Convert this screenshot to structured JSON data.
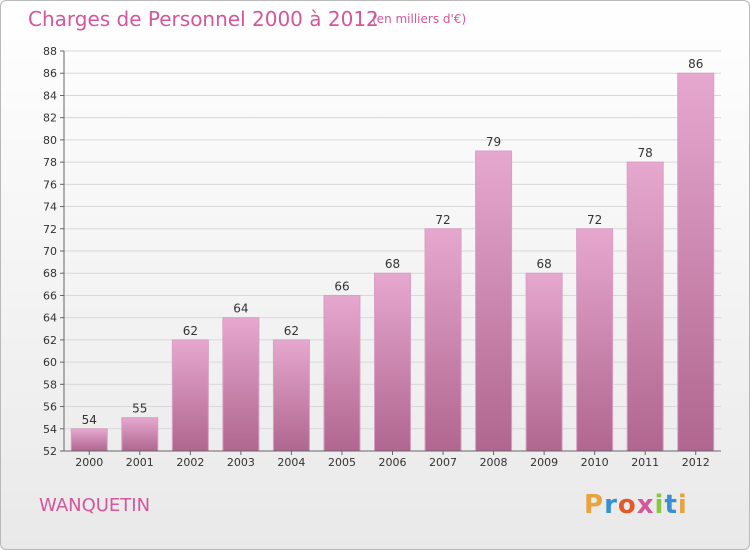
{
  "header": {
    "title": "Charges de Personnel 2000 à 2012",
    "subtitle": "(en milliers d'€)"
  },
  "footer": {
    "commune": "WANQUETIN",
    "brand": "Proxiti",
    "brand_letter_colors": [
      "#e8a33d",
      "#3a8fd0",
      "#e05a2c",
      "#d4569b",
      "#8cc63f",
      "#3a8fd0",
      "#e8a33d"
    ]
  },
  "colors": {
    "title": "#d4569b",
    "bar_top": "#e6a8cf",
    "bar_bottom": "#b0668f",
    "bar_edge": "#d9a0c2",
    "grid": "#d8d8d8",
    "axis": "#666666",
    "label": "#333333"
  },
  "chart_data": {
    "type": "bar",
    "categories": [
      "2000",
      "2001",
      "2002",
      "2003",
      "2004",
      "2005",
      "2006",
      "2007",
      "2008",
      "2009",
      "2010",
      "2011",
      "2012"
    ],
    "values": [
      54,
      55,
      62,
      64,
      62,
      66,
      68,
      72,
      79,
      68,
      72,
      78,
      86
    ],
    "ylim": [
      52,
      88
    ],
    "yticks": [
      52,
      54,
      56,
      58,
      60,
      62,
      64,
      66,
      68,
      70,
      72,
      74,
      76,
      78,
      80,
      82,
      84,
      86,
      88
    ],
    "grid": true,
    "xlabel": "",
    "ylabel": ""
  }
}
